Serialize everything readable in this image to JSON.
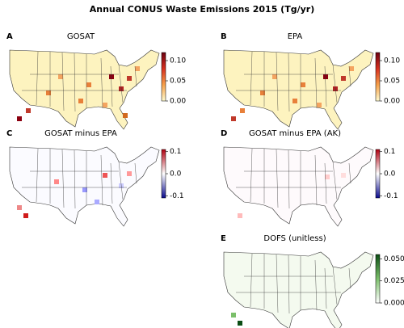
{
  "title": "Annual CONUS Waste Emissions 2015 (Tg/yr)",
  "panels": [
    {
      "letter": "A",
      "title": "GOSAT",
      "colorbar": {
        "lim": [
          0,
          0.12
        ],
        "colors": [
          "#fffbd0",
          "#f6a04a",
          "#d7301f",
          "#6b0010"
        ],
        "ticks": [
          {
            "value": 0,
            "label": "0.00"
          },
          {
            "value": 0.05,
            "label": "0.05"
          },
          {
            "value": 0.1,
            "label": "0.10"
          }
        ]
      }
    },
    {
      "letter": "B",
      "title": "EPA",
      "colorbar": {
        "lim": [
          0,
          0.12
        ],
        "colors": [
          "#fffbd0",
          "#f6a04a",
          "#d7301f",
          "#6b0010"
        ],
        "ticks": [
          {
            "value": 0,
            "label": "0.00"
          },
          {
            "value": 0.05,
            "label": "0.05"
          },
          {
            "value": 0.1,
            "label": "0.10"
          }
        ]
      }
    },
    {
      "letter": "C",
      "title": "GOSAT minus EPA",
      "colorbar": {
        "lim": [
          -0.11,
          0.11
        ],
        "colors": [
          "#0a0a8c",
          "#ffffff",
          "#b00010"
        ],
        "ticks": [
          -0.1,
          {
            "value": 0,
            "label": "0.0"
          },
          0.1
        ]
      }
    },
    {
      "letter": "D",
      "title": "GOSAT minus EPA (AK)",
      "colorbar": {
        "lim": [
          -0.11,
          0.11
        ],
        "colors": [
          "#0a0a8c",
          "#ffffff",
          "#b00010"
        ],
        "ticks": [
          -0.1,
          {
            "value": 0,
            "label": "0.0"
          },
          0.1
        ]
      }
    },
    {
      "letter": "E",
      "title": "DOFS (unitless)",
      "colorbar": {
        "lim": [
          0,
          0.055
        ],
        "colors": [
          "#ffffff",
          "#7bbf6a",
          "#0b4d14"
        ],
        "ticks": [
          {
            "value": 0,
            "label": "0.000"
          },
          0.025,
          {
            "value": 0.05,
            "label": "0.050"
          }
        ]
      }
    }
  ]
}
